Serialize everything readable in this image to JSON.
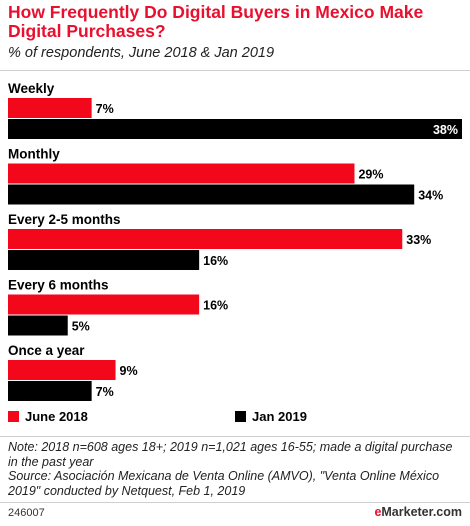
{
  "header": {
    "title": "How Frequently Do Digital Buyers in Mexico Make Digital Purchases?",
    "subtitle": "% of respondents, June 2018 & Jan 2019"
  },
  "chart_data": {
    "type": "bar",
    "orientation": "horizontal",
    "categories": [
      "Weekly",
      "Monthly",
      "Every 2-5 months",
      "Every 6 months",
      "Once a year"
    ],
    "series": [
      {
        "name": "June 2018",
        "color": "#f2071b",
        "values": [
          7,
          29,
          33,
          16,
          9
        ]
      },
      {
        "name": "Jan 2019",
        "color": "#000000",
        "values": [
          38,
          34,
          16,
          5,
          7
        ]
      }
    ],
    "value_suffix": "%",
    "xlim": [
      0,
      38
    ],
    "legend_position": "bottom",
    "grid": false
  },
  "legend": {
    "june": "June 2018",
    "jan": "Jan 2019"
  },
  "footer": {
    "note": "Note: 2018 n=608 ages 18+; 2019 n=1,021 ages 16-55; made a digital purchase in the past year",
    "source": "Source: Asociación Mexicana de Venta Online (AMVO), \"Venta Online México 2019\" conducted by Netquest, Feb 1, 2019",
    "id": "246007",
    "brand_prefix": "e",
    "brand_rest": "Marketer.com"
  }
}
